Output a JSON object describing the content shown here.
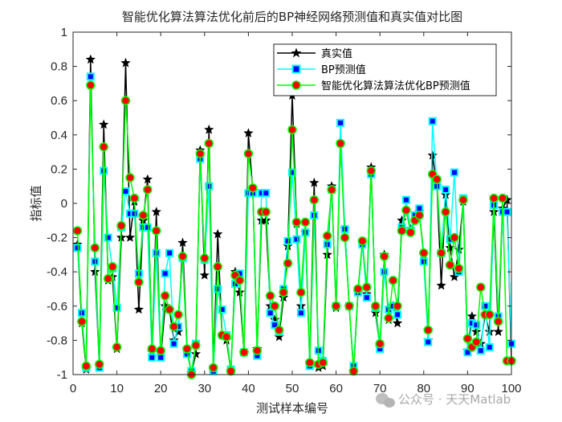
{
  "chart_data": {
    "type": "line",
    "title": "智能优化算法算法优化前后的BP神经网络预测值和真实值对比图",
    "xlabel": "测试样本编号",
    "ylabel": "指标值",
    "xlim": [
      0,
      100
    ],
    "ylim": [
      -1,
      1
    ],
    "xticks": [
      0,
      10,
      20,
      30,
      40,
      50,
      60,
      70,
      80,
      90,
      100
    ],
    "yticks": [
      -1,
      -0.8,
      -0.6,
      -0.4,
      -0.2,
      0,
      0.2,
      0.4,
      0.6,
      0.8,
      1
    ],
    "ytick_labels": [
      "-1",
      "-0.8",
      "-0.6",
      "-0.4",
      "-0.2",
      "0",
      "0.2",
      "0.4",
      "0.6",
      "0.8",
      "1"
    ],
    "grid": false,
    "legend_position": "upper right (inside)",
    "x": [
      1,
      2,
      3,
      4,
      5,
      6,
      7,
      8,
      9,
      10,
      11,
      12,
      13,
      14,
      15,
      16,
      17,
      18,
      19,
      20,
      21,
      22,
      23,
      24,
      25,
      26,
      27,
      28,
      29,
      30,
      31,
      32,
      33,
      34,
      35,
      36,
      37,
      38,
      39,
      40,
      41,
      42,
      43,
      44,
      45,
      46,
      47,
      48,
      49,
      50,
      51,
      52,
      53,
      54,
      55,
      56,
      57,
      58,
      59,
      60,
      61,
      62,
      63,
      64,
      65,
      66,
      67,
      68,
      69,
      70,
      71,
      72,
      73,
      74,
      75,
      76,
      77,
      78,
      79,
      80,
      81,
      82,
      83,
      84,
      85,
      86,
      87,
      88,
      89,
      90,
      91,
      92,
      93,
      94,
      95,
      96,
      97,
      98,
      99,
      100
    ],
    "series": [
      {
        "name": "真实值",
        "color": "#000000",
        "marker": "star",
        "values": [
          -0.24,
          -0.7,
          -0.97,
          0.84,
          -0.4,
          -0.95,
          0.46,
          -0.45,
          -0.43,
          -0.85,
          -0.2,
          0.82,
          -0.2,
          0.01,
          -0.62,
          -0.1,
          0.14,
          -0.87,
          -0.05,
          -0.9,
          -0.6,
          -0.62,
          -0.8,
          -0.75,
          -0.23,
          -0.85,
          -0.99,
          -0.88,
          0.31,
          -0.42,
          0.43,
          -0.96,
          -0.18,
          -0.77,
          -0.8,
          -0.98,
          -0.4,
          -0.52,
          -0.87,
          0.41,
          0.07,
          -0.85,
          -0.1,
          -0.1,
          -0.6,
          -0.68,
          -0.78,
          -0.55,
          -0.25,
          0.63,
          -0.12,
          -0.6,
          -0.17,
          -0.93,
          0.12,
          -0.96,
          -0.95,
          -0.3,
          0.1,
          -0.61,
          0.35,
          -0.15,
          -0.6,
          -0.98,
          -0.52,
          -0.23,
          -0.53,
          0.21,
          -0.64,
          -0.84,
          -0.3,
          -0.68,
          -0.6,
          -0.7,
          -0.1,
          -0.05,
          -0.15,
          -0.1,
          -0.05,
          -0.3,
          -0.8,
          0.28,
          0.1,
          -0.48,
          0.05,
          -0.26,
          -0.43,
          -0.27,
          0.01,
          -0.86,
          -0.66,
          -0.75,
          -0.82,
          -0.65,
          -0.75,
          -0.05,
          -0.75,
          -0.03,
          0.02,
          -0.92
        ]
      },
      {
        "name": "BP预测值",
        "color": "#00FFFF",
        "marker_face": "#0000FF",
        "marker": "square",
        "values": [
          -0.26,
          -0.64,
          -0.96,
          0.74,
          -0.34,
          -0.96,
          0.19,
          -0.2,
          -0.38,
          -0.61,
          -0.14,
          0.07,
          -0.06,
          -0.06,
          -0.41,
          -0.14,
          -0.14,
          -0.9,
          -0.29,
          -0.9,
          -0.41,
          -0.29,
          -0.82,
          -0.72,
          -0.32,
          -0.88,
          -0.98,
          -0.82,
          0.26,
          -0.33,
          0.1,
          -0.98,
          -0.5,
          -0.62,
          -0.77,
          -0.97,
          -0.47,
          -0.41,
          -0.87,
          0.06,
          0.06,
          -0.89,
          0.06,
          0.06,
          -0.64,
          -0.71,
          -0.75,
          -0.5,
          -0.22,
          0.18,
          -0.21,
          -0.64,
          -0.17,
          -0.95,
          -0.07,
          -0.86,
          -0.92,
          -0.24,
          0.08,
          -0.6,
          0.47,
          -0.15,
          -0.6,
          -0.95,
          -0.52,
          -0.24,
          -0.55,
          0.17,
          -0.61,
          -0.85,
          -0.4,
          -0.62,
          -0.6,
          -0.65,
          -0.14,
          0.02,
          -0.16,
          -0.07,
          -0.03,
          -0.34,
          -0.81,
          0.48,
          0.1,
          -0.29,
          0.08,
          -0.21,
          0.18,
          -0.4,
          0.03,
          -0.87,
          -0.7,
          -0.71,
          -0.86,
          -0.6,
          -0.84,
          -0.01,
          -0.66,
          -0.05,
          -0.05,
          -0.82
        ]
      },
      {
        "name": "智能优化算法算法优化BP预测值",
        "color": "#00FF00",
        "marker_face": "#FF0000",
        "marker": "circle",
        "values": [
          -0.16,
          -0.69,
          -0.95,
          0.69,
          -0.26,
          -0.94,
          0.33,
          -0.44,
          -0.37,
          -0.84,
          -0.13,
          0.6,
          0.15,
          0.03,
          -0.46,
          -0.07,
          0.08,
          -0.85,
          -0.16,
          -0.86,
          -0.54,
          -0.62,
          -0.72,
          -0.65,
          -0.31,
          -0.85,
          -1.0,
          -0.83,
          0.29,
          -0.32,
          0.35,
          -0.96,
          -0.37,
          -0.77,
          -0.78,
          -0.98,
          -0.42,
          -0.45,
          -0.87,
          0.29,
          0.09,
          -0.86,
          -0.05,
          -0.05,
          -0.54,
          -0.6,
          -0.74,
          -0.52,
          -0.35,
          0.43,
          -0.11,
          -0.52,
          -0.11,
          -0.93,
          0.02,
          -0.94,
          -0.93,
          -0.19,
          0.08,
          -0.6,
          0.35,
          -0.2,
          -0.6,
          -0.98,
          -0.5,
          -0.22,
          -0.49,
          0.19,
          -0.6,
          -0.82,
          -0.31,
          -0.67,
          -0.45,
          -0.6,
          -0.16,
          -0.04,
          -0.17,
          -0.1,
          -0.07,
          -0.29,
          -0.74,
          0.17,
          0.14,
          -0.29,
          -0.05,
          -0.36,
          -0.2,
          -0.38,
          0.02,
          -0.79,
          -0.84,
          -0.81,
          -0.49,
          -0.65,
          -0.65,
          0.03,
          -0.69,
          0.03,
          -0.92,
          -0.92
        ]
      }
    ]
  },
  "title": "智能优化算法算法优化前后的BP神经网络预测值和真实值对比图",
  "xlabel": "测试样本编号",
  "ylabel": "指标值",
  "legend": {
    "items": [
      {
        "label": "真实值"
      },
      {
        "label": "BP预测值"
      },
      {
        "label": "智能优化算法算法优化BP预测值"
      }
    ]
  },
  "watermark": "公众号 · 天天Matlab"
}
